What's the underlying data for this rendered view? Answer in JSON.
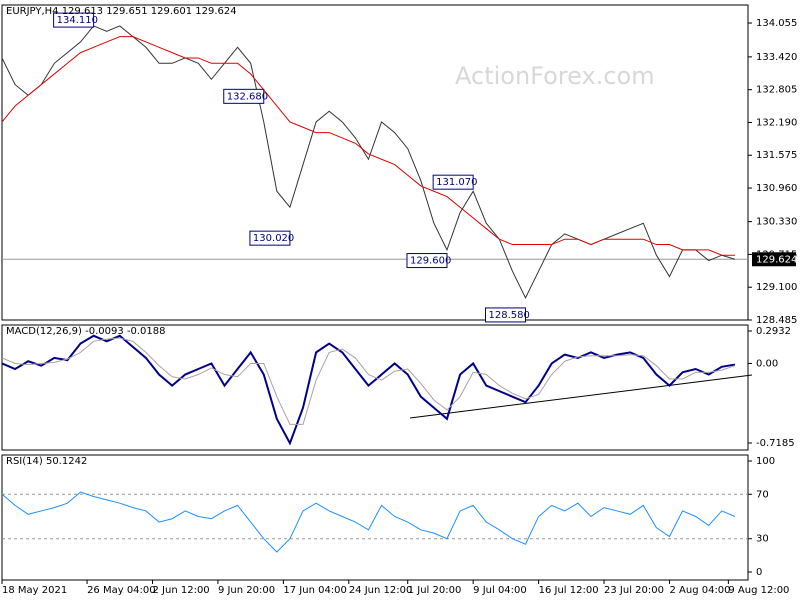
{
  "chart_data": [
    {
      "type": "line",
      "title": "EURJPY,H4  129.613 129.651 129.601 129.624",
      "watermark": "ActionForex.com",
      "xlim": [
        0,
        57
      ],
      "ylim": [
        128.485,
        134.393
      ],
      "yticks": [
        {
          "value": 134.055,
          "label": "134.055"
        },
        {
          "value": 133.42,
          "label": "133.420"
        },
        132.805,
        {
          "value": 132.19,
          "label": "132.190"
        },
        131.575,
        {
          "value": 130.96,
          "label": "130.960"
        },
        {
          "value": 130.33,
          "label": "130.330"
        },
        129.715,
        {
          "value": 129.1,
          "label": "129.100"
        },
        128.485
      ],
      "last_price": 129.624,
      "series": [
        {
          "color": "#333333",
          "values": [
            133.4,
            132.9,
            132.7,
            132.9,
            133.3,
            133.5,
            133.7,
            134.0,
            133.9,
            134.0,
            133.8,
            133.6,
            133.3,
            133.3,
            133.4,
            133.3,
            133.0,
            133.3,
            133.6,
            133.3,
            132.2,
            130.9,
            130.6,
            131.4,
            132.2,
            132.4,
            132.2,
            131.9,
            131.5,
            132.2,
            132.0,
            131.7,
            131.1,
            130.3,
            129.8,
            130.5,
            130.9,
            130.3,
            130.0,
            129.4,
            128.9,
            129.4,
            129.9,
            130.1,
            130.0,
            129.9,
            130.0,
            130.1,
            130.2,
            130.3,
            129.7,
            129.3,
            129.8,
            129.8,
            129.6,
            129.7,
            129.624
          ]
        },
        {
          "color": "#e00000",
          "values": [
            132.2,
            132.5,
            132.7,
            132.9,
            133.1,
            133.3,
            133.5,
            133.6,
            133.7,
            133.8,
            133.8,
            133.7,
            133.6,
            133.5,
            133.4,
            133.4,
            133.3,
            133.3,
            133.3,
            133.1,
            132.8,
            132.5,
            132.2,
            132.1,
            132.0,
            132.0,
            131.9,
            131.8,
            131.6,
            131.5,
            131.4,
            131.2,
            131.0,
            130.9,
            130.8,
            130.6,
            130.4,
            130.2,
            130.0,
            129.9,
            129.9,
            129.9,
            129.9,
            130.0,
            130.0,
            129.9,
            130.0,
            130.0,
            130.0,
            130.0,
            129.9,
            129.9,
            129.8,
            129.8,
            129.8,
            129.7,
            129.7
          ]
        }
      ],
      "annotations": [
        {
          "x": 7,
          "value": 134.11,
          "label": "134.110"
        },
        {
          "x": 20,
          "value": 132.68,
          "label": "132.680"
        },
        {
          "x": 22,
          "value": 130.02,
          "label": "130.020"
        },
        {
          "x": 34,
          "value": 129.6,
          "label": "129.600"
        },
        {
          "x": 36,
          "value": 131.07,
          "label": "131.070"
        },
        {
          "x": 40,
          "value": 128.58,
          "label": "128.580"
        }
      ]
    },
    {
      "type": "line",
      "title": "MACD(12,26,9) -0.0093 -0.0188",
      "xlim": [
        0,
        57
      ],
      "ylim": [
        -0.7817,
        0.3474
      ],
      "yticks": [
        0.2932,
        {
          "value": 0,
          "label": "0.00"
        },
        -0.7185
      ],
      "series": [
        {
          "color": "#00008b",
          "values": [
            0.0,
            -0.05,
            0.02,
            -0.02,
            0.05,
            0.03,
            0.18,
            0.25,
            0.2,
            0.25,
            0.15,
            0.05,
            -0.1,
            -0.2,
            -0.1,
            -0.05,
            0.0,
            -0.2,
            -0.05,
            0.1,
            -0.1,
            -0.5,
            -0.72,
            -0.4,
            0.1,
            0.18,
            0.1,
            -0.05,
            -0.2,
            -0.1,
            0.0,
            -0.1,
            -0.3,
            -0.4,
            -0.5,
            -0.1,
            0.0,
            -0.2,
            -0.25,
            -0.3,
            -0.35,
            -0.2,
            0.0,
            0.08,
            0.05,
            0.1,
            0.05,
            0.08,
            0.1,
            0.05,
            -0.1,
            -0.2,
            -0.08,
            -0.05,
            -0.1,
            -0.03,
            -0.01
          ]
        },
        {
          "color": "#b0a0a0",
          "values": [
            0.05,
            0.0,
            -0.01,
            0.0,
            0.01,
            0.04,
            0.1,
            0.2,
            0.22,
            0.23,
            0.2,
            0.1,
            -0.02,
            -0.12,
            -0.14,
            -0.1,
            -0.04,
            -0.1,
            -0.12,
            0.0,
            0.0,
            -0.3,
            -0.55,
            -0.55,
            -0.15,
            0.1,
            0.13,
            0.05,
            -0.1,
            -0.15,
            -0.07,
            -0.05,
            -0.18,
            -0.33,
            -0.42,
            -0.3,
            -0.08,
            -0.1,
            -0.2,
            -0.27,
            -0.32,
            -0.28,
            -0.1,
            0.02,
            0.06,
            0.07,
            0.07,
            0.07,
            0.08,
            0.07,
            -0.02,
            -0.14,
            -0.14,
            -0.08,
            -0.08,
            -0.06,
            -0.02
          ]
        }
      ]
    },
    {
      "type": "line",
      "title": "RSI(14) 50.1242",
      "xlim": [
        0,
        57
      ],
      "ylim": [
        -7.2,
        105.4
      ],
      "yticks": [
        100,
        70,
        30,
        0
      ],
      "levels": [
        70,
        30
      ],
      "xticks": [
        {
          "value": 0,
          "label": "18 May 2021"
        },
        {
          "value": 6.5,
          "label": "26 May 04:00"
        },
        {
          "value": 11.5,
          "label": "2 Jun 12:00"
        },
        {
          "value": 16.5,
          "label": "9 Jun 20:00"
        },
        {
          "value": 21.5,
          "label": "17 Jun 04:00"
        },
        {
          "value": 26.5,
          "label": "24 Jun 12:00"
        },
        {
          "value": 31,
          "label": "1 Jul 20:00"
        },
        {
          "value": 36,
          "label": "9 Jul 04:00"
        },
        {
          "value": 41,
          "label": "16 Jul 12:00"
        },
        {
          "value": 46,
          "label": "23 Jul 20:00"
        },
        {
          "value": 51,
          "label": "2 Aug 04:00"
        },
        {
          "value": 55.5,
          "label": "9 Aug 12:00"
        }
      ],
      "series": [
        {
          "color": "#1e90ff",
          "values": [
            70,
            60,
            52,
            55,
            58,
            62,
            72,
            68,
            65,
            62,
            58,
            55,
            45,
            48,
            55,
            50,
            48,
            55,
            60,
            45,
            30,
            18,
            30,
            55,
            62,
            55,
            50,
            45,
            38,
            60,
            50,
            45,
            38,
            35,
            30,
            55,
            60,
            45,
            38,
            30,
            25,
            50,
            60,
            55,
            62,
            50,
            58,
            55,
            52,
            60,
            40,
            32,
            55,
            50,
            42,
            55,
            50
          ]
        }
      ]
    }
  ]
}
